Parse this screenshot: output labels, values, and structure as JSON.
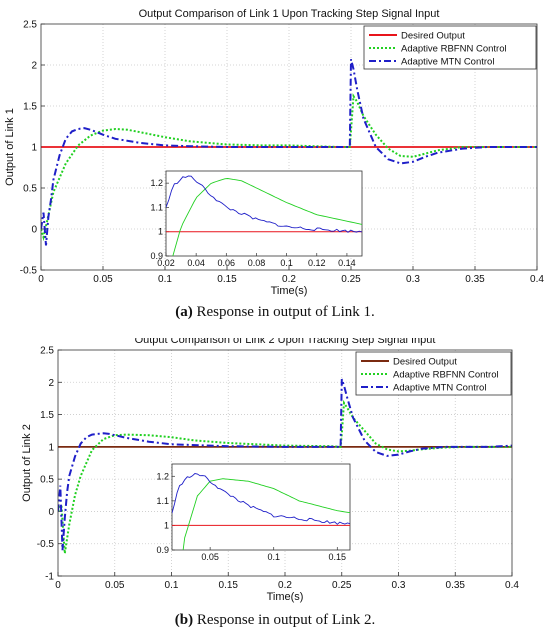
{
  "chart_data": [
    {
      "type": "line",
      "title": "Output Comparison of Link 1 Upon Tracking Step Signal Input",
      "xlabel": "Time(s)",
      "ylabel": "Output of Link 1",
      "xlim": [
        0,
        0.4
      ],
      "ylim": [
        -0.5,
        2.5
      ],
      "xticks": [
        "0",
        "0.05",
        "0.1",
        "0.15",
        "0.2",
        "0.25",
        "0.3",
        "0.35",
        "0.4"
      ],
      "yticks": [
        "-0.5",
        "0",
        "0.5",
        "1",
        "1.5",
        "2",
        "2.5"
      ],
      "grid": true,
      "legend_position": "top-right",
      "series": [
        {
          "name": "Desired Output",
          "color": "#e8141b",
          "style": "solid",
          "x": [
            0,
            0.4
          ],
          "y": [
            1,
            1
          ]
        },
        {
          "name": "Adaptive RBFNN Control",
          "color": "#22d022",
          "style": "dotted",
          "x": [
            0,
            0.002,
            0.005,
            0.01,
            0.02,
            0.03,
            0.04,
            0.05,
            0.06,
            0.07,
            0.08,
            0.1,
            0.12,
            0.15,
            0.18,
            0.2,
            0.22,
            0.24,
            0.249,
            0.25,
            0.252,
            0.255,
            0.26,
            0.27,
            0.28,
            0.29,
            0.3,
            0.31,
            0.32,
            0.34,
            0.36,
            0.38,
            0.4
          ],
          "y": [
            0,
            -0.1,
            0.1,
            0.45,
            0.8,
            1.02,
            1.14,
            1.2,
            1.22,
            1.21,
            1.18,
            1.12,
            1.07,
            1.03,
            1.02,
            1.02,
            1.01,
            1.0,
            1.0,
            1.2,
            1.62,
            1.55,
            1.38,
            1.15,
            0.98,
            0.89,
            0.88,
            0.92,
            0.96,
            1.0,
            1.0,
            1.0,
            1.0
          ]
        },
        {
          "name": "Adaptive MTN Control",
          "color": "#1f1fc8",
          "style": "dashdot",
          "x": [
            0,
            0.002,
            0.004,
            0.006,
            0.008,
            0.01,
            0.015,
            0.02,
            0.025,
            0.03,
            0.035,
            0.04,
            0.045,
            0.05,
            0.06,
            0.08,
            0.1,
            0.12,
            0.15,
            0.2,
            0.24,
            0.249,
            0.25,
            0.252,
            0.255,
            0.26,
            0.27,
            0.28,
            0.29,
            0.3,
            0.31,
            0.32,
            0.34,
            0.36,
            0.38,
            0.4
          ],
          "y": [
            0,
            0.2,
            -0.2,
            0.15,
            0.35,
            0.6,
            0.9,
            1.1,
            1.19,
            1.22,
            1.23,
            1.21,
            1.18,
            1.15,
            1.1,
            1.05,
            1.02,
            1.01,
            1.0,
            1.0,
            1.0,
            1.0,
            2.07,
            1.95,
            1.7,
            1.35,
            1.0,
            0.85,
            0.8,
            0.82,
            0.88,
            0.93,
            0.98,
            1.0,
            1.0,
            1.0
          ]
        }
      ],
      "inset": {
        "xlim": [
          0.02,
          0.15
        ],
        "ylim": [
          0.9,
          1.25
        ],
        "xticks": [
          "0.02",
          "0.04",
          "0.06",
          "0.08",
          "0.1",
          "0.12",
          "0.14"
        ],
        "yticks": [
          "0.9",
          "1",
          "1.1",
          "1.2"
        ]
      }
    },
    {
      "type": "line",
      "title": "Output Comparison of Link 2 Upon Tracking Step Signal Input",
      "xlabel": "Time(s)",
      "ylabel": "Output of Link 2",
      "xlim": [
        0,
        0.4
      ],
      "ylim": [
        -1,
        2.5
      ],
      "xticks": [
        "0",
        "0.05",
        "0.1",
        "0.15",
        "0.2",
        "0.25",
        "0.3",
        "0.35",
        "0.4"
      ],
      "yticks": [
        "-1",
        "-0.5",
        "0",
        "0.5",
        "1",
        "1.5",
        "2",
        "2.5"
      ],
      "grid": true,
      "legend_position": "top-right",
      "series": [
        {
          "name": "Desired Output",
          "color": "#7a2a10",
          "style": "solid",
          "x": [
            0,
            0.4
          ],
          "y": [
            1,
            1
          ]
        },
        {
          "name": "Adaptive RBFNN Control",
          "color": "#22d022",
          "style": "dotted",
          "x": [
            0,
            0.003,
            0.006,
            0.01,
            0.015,
            0.02,
            0.03,
            0.04,
            0.05,
            0.06,
            0.08,
            0.1,
            0.12,
            0.15,
            0.2,
            0.24,
            0.249,
            0.25,
            0.252,
            0.255,
            0.26,
            0.27,
            0.28,
            0.29,
            0.3,
            0.31,
            0.32,
            0.34,
            0.36,
            0.38,
            0.4
          ],
          "y": [
            0,
            0.1,
            -0.65,
            -0.2,
            0.25,
            0.55,
            0.95,
            1.12,
            1.18,
            1.19,
            1.18,
            1.15,
            1.1,
            1.06,
            1.02,
            1.01,
            1.0,
            1.2,
            1.68,
            1.6,
            1.45,
            1.25,
            1.05,
            0.96,
            0.93,
            0.94,
            0.96,
            0.99,
            1.0,
            1.0,
            1.0
          ]
        },
        {
          "name": "Adaptive MTN Control",
          "color": "#1f1fc8",
          "style": "dashdot",
          "x": [
            0,
            0.002,
            0.004,
            0.006,
            0.008,
            0.01,
            0.015,
            0.02,
            0.025,
            0.03,
            0.035,
            0.04,
            0.045,
            0.05,
            0.06,
            0.08,
            0.1,
            0.15,
            0.2,
            0.24,
            0.249,
            0.25,
            0.252,
            0.255,
            0.26,
            0.27,
            0.28,
            0.29,
            0.3,
            0.31,
            0.32,
            0.34,
            0.36,
            0.38,
            0.4
          ],
          "y": [
            0,
            0.4,
            -0.6,
            -0.1,
            0.3,
            0.55,
            0.85,
            1.05,
            1.15,
            1.19,
            1.2,
            1.21,
            1.2,
            1.18,
            1.14,
            1.08,
            1.04,
            1.01,
            1.0,
            1.0,
            1.0,
            2.05,
            1.95,
            1.75,
            1.45,
            1.1,
            0.92,
            0.86,
            0.88,
            0.93,
            0.97,
            1.0,
            1.0,
            1.0,
            1.02
          ]
        }
      ],
      "inset": {
        "xlim": [
          0.02,
          0.16
        ],
        "ylim": [
          0.9,
          1.25
        ],
        "xticks": [
          "0.05",
          "0.1",
          "0.15"
        ],
        "yticks": [
          "0.9",
          "1",
          "1.1",
          "1.2"
        ]
      }
    }
  ],
  "captions": [
    {
      "label": "(a)",
      "text": " Response in output of Link 1."
    },
    {
      "label": "(b)",
      "text": " Response in output of Link 2."
    }
  ]
}
